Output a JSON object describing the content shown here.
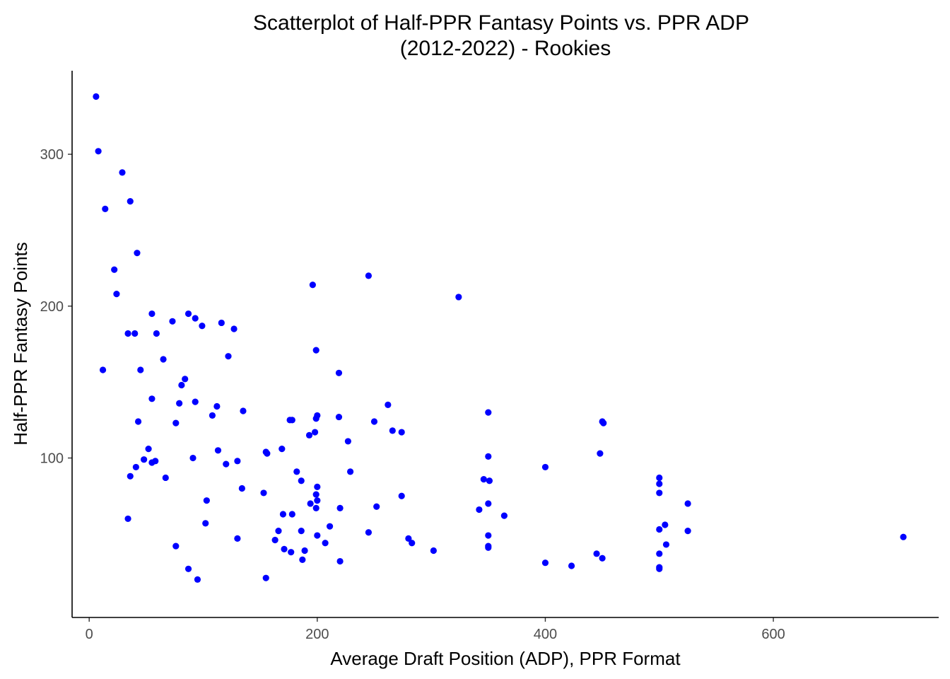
{
  "chart_data": {
    "type": "scatter",
    "title": [
      "Scatterplot of Half-PPR Fantasy Points vs. PPR ADP",
      "(2012-2022) - Rookies"
    ],
    "xlabel": "Average Draft Position (ADP), PPR Format",
    "ylabel": "Half-PPR Fantasy Points",
    "xlim": [
      -15,
      745
    ],
    "ylim": [
      -5,
      355
    ],
    "xticks": [
      0,
      200,
      400,
      600
    ],
    "yticks": [
      100,
      200,
      300
    ],
    "grid": false,
    "point_color": "#0000FF",
    "axis_color": "#000000",
    "tick_label_color": "#4D4D4D",
    "series": [
      {
        "points": [
          [
            6,
            338
          ],
          [
            8,
            302
          ],
          [
            14,
            264
          ],
          [
            12,
            158
          ],
          [
            22,
            224
          ],
          [
            24,
            208
          ],
          [
            29,
            288
          ],
          [
            34,
            182
          ],
          [
            36,
            269
          ],
          [
            40,
            182
          ],
          [
            42,
            235
          ],
          [
            45,
            158
          ],
          [
            43,
            124
          ],
          [
            55,
            195
          ],
          [
            59,
            182
          ],
          [
            65,
            165
          ],
          [
            73,
            190
          ],
          [
            76,
            123
          ],
          [
            79,
            136
          ],
          [
            81,
            148
          ],
          [
            84,
            152
          ],
          [
            87,
            195
          ],
          [
            93,
            192
          ],
          [
            99,
            187
          ],
          [
            112,
            134
          ],
          [
            113,
            105
          ],
          [
            116,
            189
          ],
          [
            120,
            96
          ],
          [
            122,
            167
          ],
          [
            127,
            185
          ],
          [
            130,
            98
          ],
          [
            135,
            131
          ],
          [
            55,
            139
          ],
          [
            52,
            106
          ],
          [
            48,
            99
          ],
          [
            55,
            97
          ],
          [
            58,
            98
          ],
          [
            41,
            94
          ],
          [
            36,
            88
          ],
          [
            34,
            60
          ],
          [
            67,
            87
          ],
          [
            91,
            100
          ],
          [
            93,
            137
          ],
          [
            103,
            72
          ],
          [
            102,
            57
          ],
          [
            108,
            128
          ],
          [
            76,
            42
          ],
          [
            87,
            27
          ],
          [
            95,
            20
          ],
          [
            130,
            47
          ],
          [
            134,
            80
          ],
          [
            153,
            77
          ],
          [
            155,
            104
          ],
          [
            156,
            103
          ],
          [
            155,
            21
          ],
          [
            163,
            46
          ],
          [
            166,
            52
          ],
          [
            169,
            106
          ],
          [
            171,
            40
          ],
          [
            170,
            63
          ],
          [
            177,
            38
          ],
          [
            176,
            125
          ],
          [
            178,
            125
          ],
          [
            178,
            63
          ],
          [
            182,
            91
          ],
          [
            186,
            85
          ],
          [
            186,
            52
          ],
          [
            187,
            33
          ],
          [
            189,
            39
          ],
          [
            193,
            115
          ],
          [
            194,
            70
          ],
          [
            196,
            214
          ],
          [
            199,
            171
          ],
          [
            200,
            128
          ],
          [
            199,
            126
          ],
          [
            198,
            117
          ],
          [
            200,
            81
          ],
          [
            199,
            76
          ],
          [
            200,
            72
          ],
          [
            199,
            67
          ],
          [
            200,
            49
          ],
          [
            207,
            44
          ],
          [
            211,
            55
          ],
          [
            219,
            156
          ],
          [
            219,
            127
          ],
          [
            220,
            67
          ],
          [
            220,
            32
          ],
          [
            227,
            111
          ],
          [
            229,
            91
          ],
          [
            245,
            220
          ],
          [
            245,
            51
          ],
          [
            250,
            124
          ],
          [
            252,
            68
          ],
          [
            262,
            135
          ],
          [
            266,
            118
          ],
          [
            274,
            117
          ],
          [
            274,
            75
          ],
          [
            280,
            47
          ],
          [
            283,
            44
          ],
          [
            302,
            39
          ],
          [
            324,
            206
          ],
          [
            342,
            66
          ],
          [
            346,
            86
          ],
          [
            350,
            130
          ],
          [
            350,
            101
          ],
          [
            351,
            85
          ],
          [
            350,
            70
          ],
          [
            350,
            49
          ],
          [
            350,
            42
          ],
          [
            350,
            41
          ],
          [
            364,
            62
          ],
          [
            400,
            94
          ],
          [
            400,
            31
          ],
          [
            423,
            29
          ],
          [
            445,
            37
          ],
          [
            448,
            103
          ],
          [
            450,
            124
          ],
          [
            451,
            123
          ],
          [
            450,
            34
          ],
          [
            500,
            87
          ],
          [
            500,
            83
          ],
          [
            500,
            77
          ],
          [
            500,
            53
          ],
          [
            500,
            37
          ],
          [
            500,
            28
          ],
          [
            500,
            27
          ],
          [
            505,
            56
          ],
          [
            506,
            43
          ],
          [
            525,
            70
          ],
          [
            525,
            52
          ],
          [
            714,
            48
          ]
        ]
      }
    ]
  }
}
